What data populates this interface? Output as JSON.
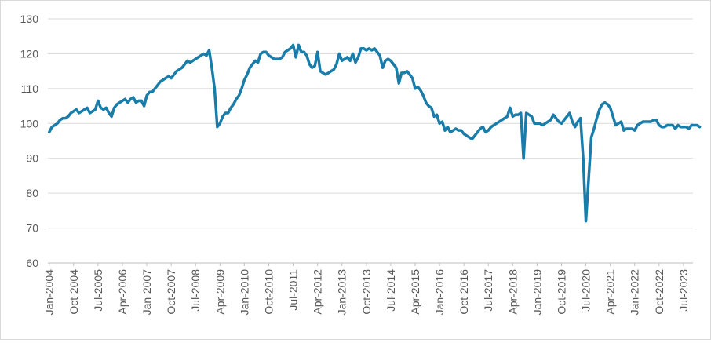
{
  "chart_data": {
    "type": "line",
    "title": "",
    "xlabel": "",
    "ylabel": "",
    "ylim": [
      60,
      130
    ],
    "yticks": [
      60,
      70,
      80,
      90,
      100,
      110,
      120,
      130
    ],
    "grid": "horizontal",
    "legend": "none",
    "x_start": "Jan-2004",
    "x_end": "Oct-2023",
    "x_tick_labels": [
      "Jan-2004",
      "Oct-2004",
      "Jul-2005",
      "Apr-2006",
      "Jan-2007",
      "Oct-2007",
      "Jul-2008",
      "Apr-2009",
      "Jan-2010",
      "Oct-2010",
      "Jul-2011",
      "Apr-2012",
      "Jan-2013",
      "Oct-2013",
      "Jul-2014",
      "Apr-2015",
      "Jan-2016",
      "Oct-2016",
      "Jul-2017",
      "Apr-2018",
      "Jan-2019",
      "Oct-2019",
      "Jul-2020",
      "Apr-2021",
      "Jan-2022",
      "Oct-2022",
      "Jul-2023"
    ],
    "series": [
      {
        "color": "#1a7ca8",
        "values": [
          97.5,
          99,
          99.5,
          100,
          101,
          101.5,
          101.5,
          102,
          103,
          103.5,
          104,
          103,
          103.5,
          104,
          104.5,
          103,
          103.5,
          104,
          106.5,
          104.5,
          104,
          104.5,
          103,
          102,
          104.5,
          105.5,
          106,
          106.5,
          107,
          106,
          107,
          107.5,
          106,
          106.5,
          106.5,
          105,
          108,
          109,
          109,
          110,
          111,
          112,
          112.5,
          113,
          113.5,
          113,
          114,
          115,
          115.5,
          116,
          117,
          118,
          117.5,
          118,
          118.5,
          119,
          119.5,
          120,
          119.5,
          121,
          116,
          110,
          99,
          100,
          102,
          103,
          103,
          104.5,
          105.5,
          107,
          108,
          110,
          112.5,
          114,
          116,
          117,
          118,
          117.5,
          120,
          120.5,
          120.5,
          119.5,
          119,
          118.5,
          118.5,
          118.5,
          119,
          120.5,
          121,
          121.5,
          122.5,
          119,
          122.5,
          120.5,
          120.5,
          119.5,
          117,
          116,
          116.5,
          120.5,
          115,
          114.5,
          114,
          114.5,
          115,
          115.5,
          117,
          120,
          118,
          118.5,
          119,
          118,
          120,
          117.5,
          119,
          121.5,
          121.5,
          121,
          121.5,
          121,
          121.5,
          120.5,
          119.5,
          116,
          118,
          118.5,
          118,
          117,
          116,
          111.5,
          114.5,
          114.5,
          115,
          114,
          113,
          110,
          110.5,
          109.5,
          108,
          106,
          105,
          104.5,
          102,
          102.5,
          100,
          100.5,
          98,
          99,
          97.5,
          98,
          98.5,
          98,
          98,
          97,
          96.5,
          96,
          95.5,
          96.5,
          97.5,
          98.5,
          99,
          97.5,
          98,
          99,
          99.5,
          100,
          100.5,
          101,
          101.5,
          102,
          104.5,
          102,
          102.5,
          102.5,
          103,
          90,
          103,
          102.5,
          102,
          100,
          100,
          100,
          99.5,
          100,
          100.5,
          101,
          102.5,
          101.5,
          100.5,
          100,
          101,
          102,
          103,
          100.5,
          99,
          100.5,
          101.5,
          90,
          72,
          84,
          96,
          98.5,
          101.5,
          104,
          105.5,
          106,
          105.5,
          104.5,
          102,
          99.5,
          100,
          100.5,
          98,
          98.5,
          98.5,
          98.5,
          98,
          99.5,
          100,
          100.5,
          100.5,
          100.5,
          100.5,
          101,
          101,
          99.5,
          99,
          99,
          99.5,
          99.5,
          99.5,
          98.5,
          99.5,
          99,
          99,
          99,
          98.5,
          99.5,
          99.5,
          99.5,
          99
        ]
      }
    ]
  }
}
